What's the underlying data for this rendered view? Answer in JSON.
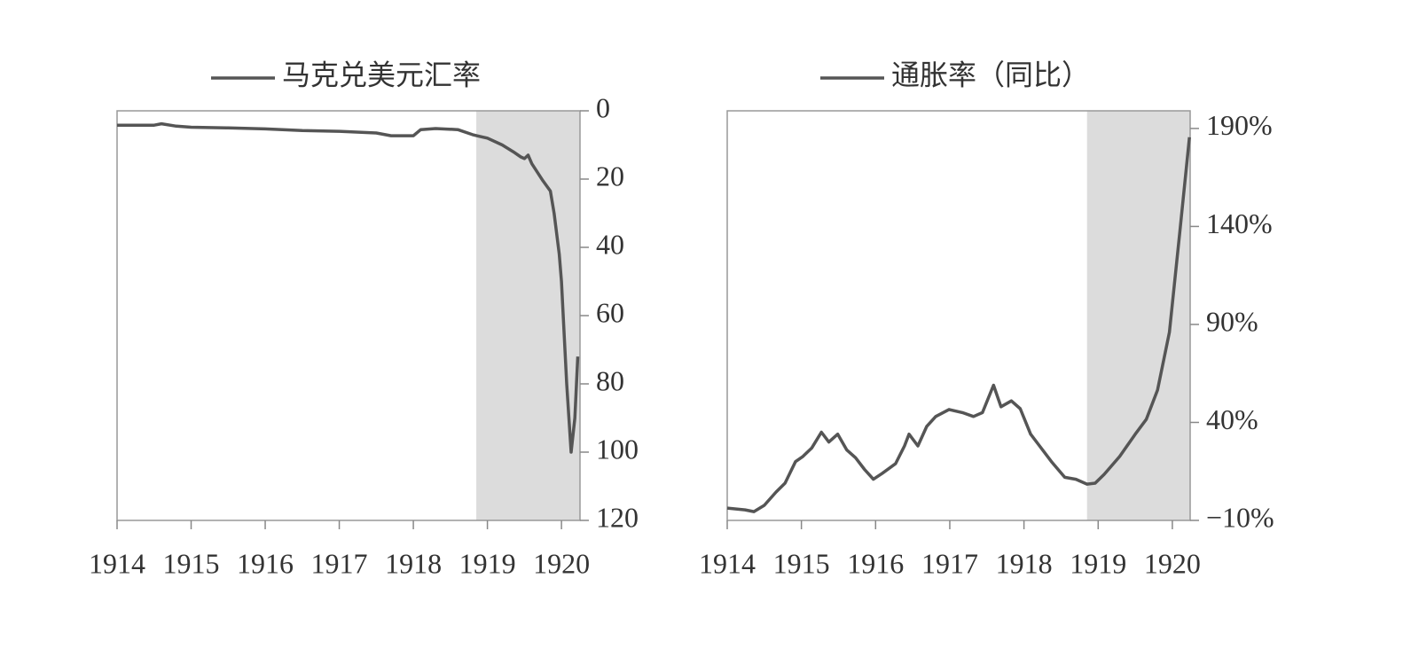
{
  "chart_data": [
    {
      "type": "line",
      "series": [
        {
          "name": "马克兑美元汇率",
          "color": "#555555",
          "values": [
            4.2,
            4.2,
            3.8,
            4.5,
            4.8,
            5.0,
            5.3,
            5.8,
            6.0,
            6.5,
            7.3,
            7.3,
            5.5,
            5.2,
            5.5,
            7.0,
            7.5,
            8.0,
            10.0,
            12.0,
            13.5,
            14.0,
            13.0,
            15.5,
            20.5,
            23.5,
            30,
            42,
            50,
            80,
            100,
            90,
            72
          ]
        }
      ],
      "x": [
        1914.0,
        1914.5,
        1914.6,
        1914.8,
        1915.0,
        1915.5,
        1916.0,
        1916.5,
        1917.0,
        1917.5,
        1917.7,
        1918.0,
        1918.1,
        1918.3,
        1918.6,
        1918.8,
        1918.9,
        1919.0,
        1919.2,
        1919.35,
        1919.45,
        1919.5,
        1919.55,
        1919.6,
        1919.75,
        1919.85,
        1919.9,
        1919.97,
        1920.0,
        1920.07,
        1920.13,
        1920.18,
        1920.22
      ],
      "xlim": [
        1914,
        1920.25
      ],
      "xticks": [
        1914,
        1915,
        1916,
        1917,
        1918,
        1919,
        1920
      ],
      "ylim": [
        120,
        0
      ],
      "yticks": [
        0,
        20,
        40,
        60,
        80,
        100,
        120
      ],
      "y_axis_side": "right",
      "highlight_x": [
        1918.85,
        1920.25
      ],
      "highlight_color": "#dcdcdc"
    },
    {
      "type": "line",
      "series": [
        {
          "name": "通胀率（同比）",
          "color": "#555555",
          "values": [
            -3.7,
            -4.6,
            -5.5,
            -2.3,
            4.5,
            9,
            20,
            22.6,
            27,
            35,
            30,
            34,
            26,
            22,
            16,
            11,
            14,
            19,
            28,
            34,
            28,
            38,
            43,
            46.6,
            45,
            43,
            45,
            59,
            48,
            51,
            47,
            34,
            28,
            20,
            12,
            11,
            8.5,
            9,
            13.5,
            22.6,
            34,
            41.6,
            56.5,
            86,
            137,
            185.5
          ]
        }
      ],
      "x": [
        1914.0,
        1914.24,
        1914.36,
        1914.5,
        1914.66,
        1914.78,
        1914.92,
        1915.02,
        1915.14,
        1915.27,
        1915.37,
        1915.49,
        1915.61,
        1915.73,
        1915.85,
        1915.97,
        1916.09,
        1916.27,
        1916.39,
        1916.45,
        1916.57,
        1916.69,
        1916.81,
        1916.99,
        1917.17,
        1917.32,
        1917.44,
        1917.59,
        1917.69,
        1917.83,
        1917.95,
        1918.09,
        1918.21,
        1918.37,
        1918.55,
        1918.7,
        1918.85,
        1918.96,
        1919.08,
        1919.29,
        1919.5,
        1919.65,
        1919.8,
        1919.96,
        1920.1,
        1920.23
      ],
      "xlim": [
        1914,
        1920.24
      ],
      "xticks": [
        1914,
        1915,
        1916,
        1917,
        1918,
        1919,
        1920
      ],
      "ylim": [
        -10,
        199
      ],
      "yticks": [
        {
          "value": -10,
          "label": "−10%"
        },
        {
          "value": 40,
          "label": "40%"
        },
        {
          "value": 90,
          "label": "90%"
        },
        {
          "value": 140,
          "label": "140%"
        },
        {
          "value": 190,
          "label": "190%"
        }
      ],
      "y_axis_side": "right",
      "highlight_x": [
        1918.85,
        1920.24
      ],
      "highlight_color": "#dcdcdc"
    }
  ]
}
